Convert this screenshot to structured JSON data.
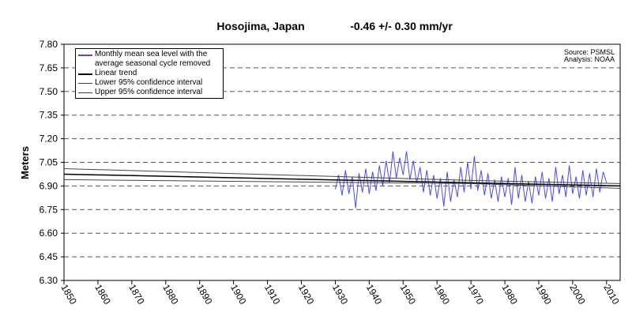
{
  "chart_data": {
    "type": "line",
    "title": "Hosojima, Japan",
    "subtitle": "-0.46 +/- 0.30  mm/yr",
    "y_label": "Meters",
    "annotations": [
      "Source: PSMSL",
      "Analysis: NOAA"
    ],
    "xlim": [
      1850,
      2014
    ],
    "xticks": [
      1850,
      1860,
      1870,
      1880,
      1890,
      1900,
      1910,
      1920,
      1930,
      1940,
      1950,
      1960,
      1970,
      1980,
      1990,
      2000,
      2010
    ],
    "ylim": [
      6.3,
      7.8
    ],
    "yticks": [
      {
        "value": 6.3,
        "label": "6.30"
      },
      6.45,
      {
        "value": 6.6,
        "label": "6.60"
      },
      6.75,
      {
        "value": 6.9,
        "label": "6.90"
      },
      7.05,
      {
        "value": 7.2,
        "label": "7.20"
      },
      7.35,
      {
        "value": 7.5,
        "label": "7.50"
      },
      7.65,
      {
        "value": 7.8,
        "label": "7.80"
      }
    ],
    "grid": true,
    "legend": "upper left",
    "series": [
      {
        "name": "Monthly mean sea level with the average seasonal cycle removed",
        "color": "#4a4aee",
        "x": [
          1930,
          1931,
          1932,
          1933,
          1934,
          1935,
          1936,
          1937,
          1938,
          1939,
          1940,
          1941,
          1942,
          1943,
          1944,
          1945,
          1946,
          1947,
          1948,
          1949,
          1950,
          1951,
          1952,
          1953,
          1954,
          1955,
          1956,
          1957,
          1958,
          1959,
          1960,
          1961,
          1962,
          1963,
          1964,
          1965,
          1966,
          1967,
          1968,
          1969,
          1970,
          1971,
          1972,
          1973,
          1974,
          1975,
          1976,
          1977,
          1978,
          1979,
          1980,
          1981,
          1982,
          1983,
          1984,
          1985,
          1986,
          1987,
          1988,
          1989,
          1990,
          1991,
          1992,
          1993,
          1994,
          1995,
          1996,
          1997,
          1998,
          1999,
          2000,
          2001,
          2002,
          2003,
          2004,
          2005,
          2006,
          2007,
          2008,
          2009,
          2010
        ],
        "values": [
          6.88,
          6.97,
          6.84,
          7.0,
          6.85,
          6.96,
          6.76,
          6.98,
          6.86,
          7.01,
          6.85,
          6.99,
          6.87,
          7.03,
          6.9,
          7.06,
          6.92,
          7.12,
          6.95,
          7.08,
          6.97,
          7.12,
          6.94,
          7.06,
          6.92,
          7.02,
          6.86,
          7.0,
          6.84,
          6.97,
          6.82,
          6.95,
          6.77,
          6.99,
          6.8,
          6.94,
          6.83,
          7.02,
          6.86,
          7.05,
          6.88,
          7.09,
          6.87,
          7.0,
          6.84,
          6.98,
          6.82,
          6.94,
          6.8,
          6.96,
          6.83,
          6.95,
          6.78,
          7.02,
          6.82,
          6.97,
          6.8,
          6.93,
          6.79,
          6.96,
          6.84,
          6.99,
          6.82,
          6.95,
          6.8,
          7.02,
          6.85,
          6.97,
          6.83,
          7.03,
          6.85,
          6.96,
          6.82,
          7.0,
          6.84,
          6.98,
          6.83,
          7.01,
          6.86,
          6.99,
          6.92
        ]
      },
      {
        "name": "Linear trend",
        "color": "#000000",
        "width": 1.5,
        "x": [
          1850,
          2014
        ],
        "values": [
          6.975,
          6.9
        ]
      },
      {
        "name": "Lower 95% confidence interval",
        "color": "#444444",
        "width": 1,
        "x": [
          1850,
          1970,
          2014
        ],
        "values": [
          6.94,
          6.915,
          6.885
        ]
      },
      {
        "name": "Upper 95% confidence interval",
        "color": "#444444",
        "width": 1,
        "x": [
          1850,
          1970,
          2014
        ],
        "values": [
          7.01,
          6.935,
          6.915
        ]
      }
    ]
  }
}
